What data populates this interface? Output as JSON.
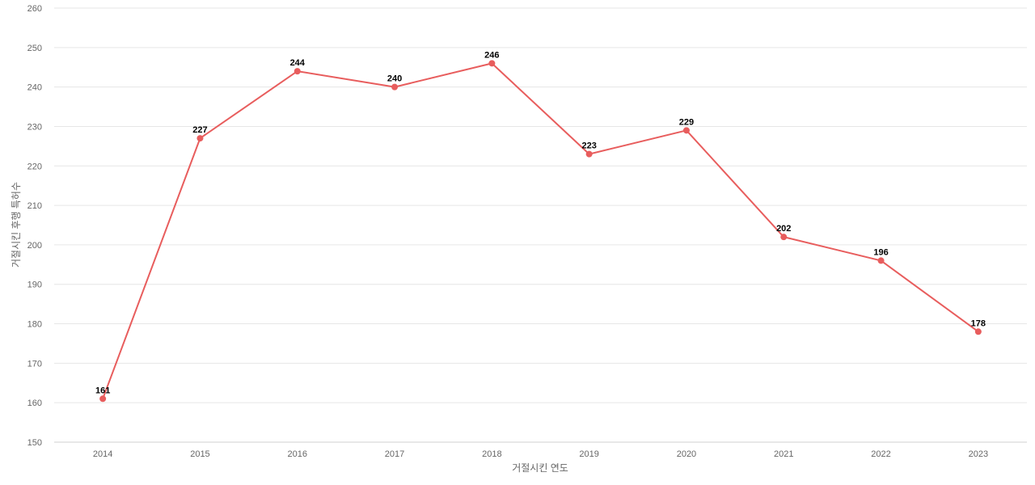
{
  "chart_data": {
    "type": "line",
    "title": "",
    "xlabel": "거절시킨 연도",
    "ylabel": "거절시킨 후행 특허수",
    "categories": [
      "2014",
      "2015",
      "2016",
      "2017",
      "2018",
      "2019",
      "2020",
      "2021",
      "2022",
      "2023"
    ],
    "values": [
      161,
      227,
      244,
      240,
      246,
      223,
      229,
      202,
      196,
      178
    ],
    "ylim": [
      150,
      260
    ],
    "yticks": [
      150,
      160,
      170,
      180,
      190,
      200,
      210,
      220,
      230,
      240,
      250,
      260
    ],
    "grid": true,
    "legend": "none",
    "colors": {
      "line": "#e85d5d",
      "point": "#e85d5d"
    }
  }
}
